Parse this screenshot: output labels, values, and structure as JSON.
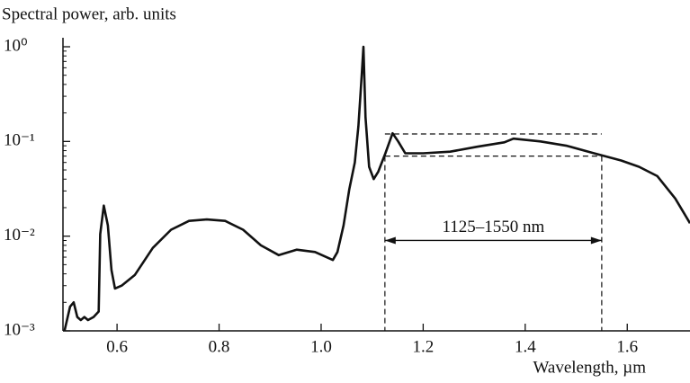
{
  "chart_data": {
    "type": "line",
    "ylabel": "Spectral power, arb. units",
    "xlabel": "Wavelength, µm",
    "yscale": "log",
    "xlim": [
      0.494,
      1.723
    ],
    "ylim": [
      0.001,
      1
    ],
    "xticks": [
      0.6,
      0.8,
      1.0,
      1.2,
      1.4,
      1.6
    ],
    "yticks": [
      {
        "value": 1,
        "label": "10⁰"
      },
      {
        "value": 0.1,
        "label": "10⁻¹"
      },
      {
        "value": 0.01,
        "label": "10⁻²"
      },
      {
        "value": 0.001,
        "label": "10⁻³"
      }
    ],
    "grid": false,
    "x": [
      0.497,
      0.508,
      0.515,
      0.522,
      0.529,
      0.536,
      0.543,
      0.554,
      0.564,
      0.567,
      0.574,
      0.582,
      0.589,
      0.596,
      0.609,
      0.635,
      0.67,
      0.706,
      0.741,
      0.776,
      0.812,
      0.847,
      0.882,
      0.917,
      0.952,
      0.988,
      1.023,
      1.032,
      1.044,
      1.055,
      1.066,
      1.073,
      1.08,
      1.083,
      1.087,
      1.094,
      1.103,
      1.112,
      1.126,
      1.14,
      1.151,
      1.165,
      1.2,
      1.253,
      1.306,
      1.359,
      1.377,
      1.43,
      1.482,
      1.535,
      1.588,
      1.623,
      1.659,
      1.694,
      1.723
    ],
    "series": [
      {
        "color": "#111111",
        "values": [
          0.001,
          0.0018,
          0.002,
          0.0014,
          0.0013,
          0.0014,
          0.0013,
          0.0014,
          0.0016,
          0.0105,
          0.021,
          0.013,
          0.0044,
          0.0028,
          0.003,
          0.0039,
          0.0075,
          0.0117,
          0.0145,
          0.015,
          0.0145,
          0.0117,
          0.008,
          0.0063,
          0.0072,
          0.0068,
          0.0056,
          0.0068,
          0.013,
          0.031,
          0.06,
          0.145,
          0.54,
          1.0,
          0.18,
          0.054,
          0.04,
          0.048,
          0.075,
          0.122,
          0.1,
          0.075,
          0.075,
          0.078,
          0.088,
          0.098,
          0.107,
          0.1,
          0.09,
          0.075,
          0.063,
          0.054,
          0.043,
          0.025,
          0.0137
        ]
      }
    ],
    "annotation": {
      "text": "1125–1550 nm",
      "x": [
        1.125,
        1.55
      ],
      "upper": 0.12,
      "lower": 0.07,
      "arrow_y": 0.009
    }
  }
}
